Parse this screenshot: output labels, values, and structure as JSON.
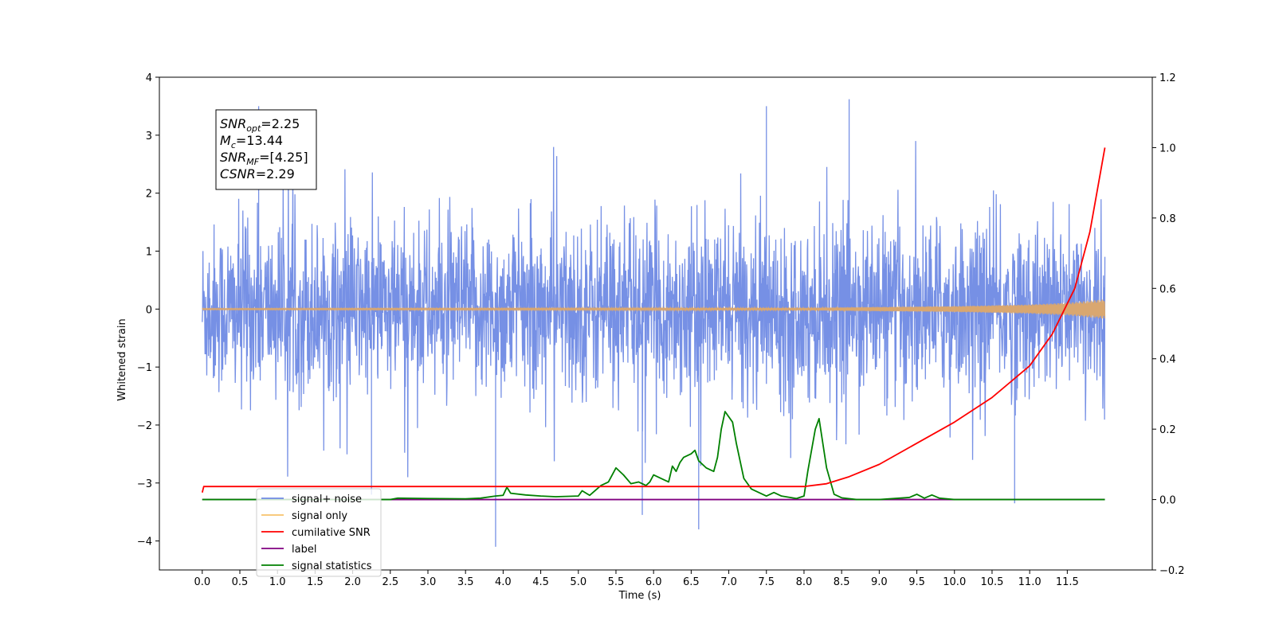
{
  "chart_data": {
    "type": "line",
    "xlabel": "Time (s)",
    "ylabel": "Whitened strain",
    "xlim": [
      -0.57,
      12.63
    ],
    "ylim": [
      -4.5,
      4.0
    ],
    "y2lim": [
      -0.2,
      1.2
    ],
    "grid": false,
    "legend_placement": "lower-left",
    "x_ticks": [
      "0.0",
      "0.5",
      "1.0",
      "1.5",
      "2.0",
      "2.5",
      "3.0",
      "3.5",
      "4.0",
      "4.5",
      "5.0",
      "5.5",
      "6.0",
      "6.5",
      "7.0",
      "7.5",
      "8.0",
      "8.5",
      "9.0",
      "9.5",
      "10.0",
      "10.5",
      "11.0",
      "11.5"
    ],
    "y_ticks": [
      "−4",
      "−3",
      "−2",
      "−1",
      "0",
      "1",
      "2",
      "3",
      "4"
    ],
    "y2_ticks": [
      "−0.2",
      "0.0",
      "0.2",
      "0.4",
      "0.6",
      "0.8",
      "1.0",
      "1.2"
    ],
    "annotation": {
      "lines": [
        {
          "base": "SNR",
          "sub": "opt",
          "value": "=2.25"
        },
        {
          "base": "M",
          "sub": "c",
          "value": "=13.44"
        },
        {
          "base": "SNR",
          "sub": "MF",
          "value": "=[4.25]"
        },
        {
          "base": "CSNR",
          "sub": "",
          "value": "=2.29"
        }
      ]
    },
    "legend": [
      {
        "label": "signal+ noise",
        "color": "#6f8ae4"
      },
      {
        "label": "signal only",
        "color": "#f7c36b"
      },
      {
        "label": "cumilative SNR",
        "color": "#ff0000"
      },
      {
        "label": "label",
        "color": "#800080"
      },
      {
        "label": "signal statistics",
        "color": "#008000"
      }
    ],
    "series": [
      {
        "name": "signal+ noise",
        "axis": "left",
        "color": "#6f8ae4",
        "t_start": 0.0,
        "t_end": 12.0,
        "envelope": {
          "upper_typical": 1.9,
          "lower_typical": -1.9,
          "spike_max": 3.62,
          "spike_min": -4.1
        },
        "spikes": [
          [
            0.75,
            3.5
          ],
          [
            3.9,
            -4.1
          ],
          [
            6.6,
            -3.8
          ],
          [
            8.6,
            3.62
          ],
          [
            7.5,
            3.5
          ],
          [
            5.85,
            -3.55
          ],
          [
            10.8,
            -3.35
          ],
          [
            2.25,
            -3.2
          ]
        ]
      },
      {
        "name": "signal only",
        "axis": "left",
        "color": "#d9a770",
        "t_start": 0.0,
        "t_end": 12.0,
        "amplitude": [
          [
            0.0,
            0.01
          ],
          [
            8.0,
            0.02
          ],
          [
            10.0,
            0.05
          ],
          [
            11.0,
            0.08
          ],
          [
            11.5,
            0.11
          ],
          [
            12.0,
            0.17
          ]
        ]
      },
      {
        "name": "cumilative SNR",
        "axis": "right",
        "color": "#ff0000",
        "points": [
          [
            0.0,
            0.02
          ],
          [
            0.02,
            0.037
          ],
          [
            8.0,
            0.037
          ],
          [
            8.3,
            0.045
          ],
          [
            8.6,
            0.065
          ],
          [
            9.0,
            0.1
          ],
          [
            9.5,
            0.16
          ],
          [
            10.0,
            0.22
          ],
          [
            10.5,
            0.29
          ],
          [
            11.0,
            0.38
          ],
          [
            11.3,
            0.47
          ],
          [
            11.6,
            0.6
          ],
          [
            11.8,
            0.76
          ],
          [
            12.0,
            1.0
          ]
        ]
      },
      {
        "name": "label",
        "axis": "right",
        "color": "#800080",
        "points": [
          [
            0.0,
            0.0
          ],
          [
            12.0,
            0.0
          ]
        ]
      },
      {
        "name": "signal statistics",
        "axis": "right",
        "color": "#008000",
        "points": [
          [
            0.0,
            0.0
          ],
          [
            2.5,
            0.0
          ],
          [
            2.6,
            0.004
          ],
          [
            3.0,
            0.003
          ],
          [
            3.5,
            0.002
          ],
          [
            3.7,
            0.004
          ],
          [
            3.9,
            0.01
          ],
          [
            4.0,
            0.012
          ],
          [
            4.05,
            0.035
          ],
          [
            4.1,
            0.018
          ],
          [
            4.3,
            0.013
          ],
          [
            4.5,
            0.01
          ],
          [
            4.7,
            0.008
          ],
          [
            5.0,
            0.01
          ],
          [
            5.05,
            0.025
          ],
          [
            5.15,
            0.012
          ],
          [
            5.3,
            0.04
          ],
          [
            5.4,
            0.05
          ],
          [
            5.5,
            0.09
          ],
          [
            5.6,
            0.07
          ],
          [
            5.7,
            0.045
          ],
          [
            5.8,
            0.05
          ],
          [
            5.9,
            0.04
          ],
          [
            5.95,
            0.05
          ],
          [
            6.0,
            0.07
          ],
          [
            6.1,
            0.06
          ],
          [
            6.2,
            0.05
          ],
          [
            6.25,
            0.095
          ],
          [
            6.3,
            0.08
          ],
          [
            6.35,
            0.105
          ],
          [
            6.4,
            0.12
          ],
          [
            6.5,
            0.13
          ],
          [
            6.55,
            0.14
          ],
          [
            6.6,
            0.11
          ],
          [
            6.7,
            0.09
          ],
          [
            6.8,
            0.08
          ],
          [
            6.85,
            0.12
          ],
          [
            6.9,
            0.2
          ],
          [
            6.95,
            0.25
          ],
          [
            7.05,
            0.22
          ],
          [
            7.1,
            0.16
          ],
          [
            7.2,
            0.06
          ],
          [
            7.3,
            0.03
          ],
          [
            7.5,
            0.01
          ],
          [
            7.6,
            0.02
          ],
          [
            7.7,
            0.01
          ],
          [
            7.9,
            0.003
          ],
          [
            8.0,
            0.01
          ],
          [
            8.05,
            0.08
          ],
          [
            8.15,
            0.2
          ],
          [
            8.2,
            0.23
          ],
          [
            8.3,
            0.09
          ],
          [
            8.4,
            0.015
          ],
          [
            8.5,
            0.005
          ],
          [
            8.7,
            0.0
          ],
          [
            9.0,
            0.0
          ],
          [
            9.4,
            0.006
          ],
          [
            9.5,
            0.015
          ],
          [
            9.6,
            0.004
          ],
          [
            9.7,
            0.013
          ],
          [
            9.8,
            0.004
          ],
          [
            10.0,
            0.0
          ],
          [
            12.0,
            0.0
          ]
        ]
      }
    ]
  }
}
